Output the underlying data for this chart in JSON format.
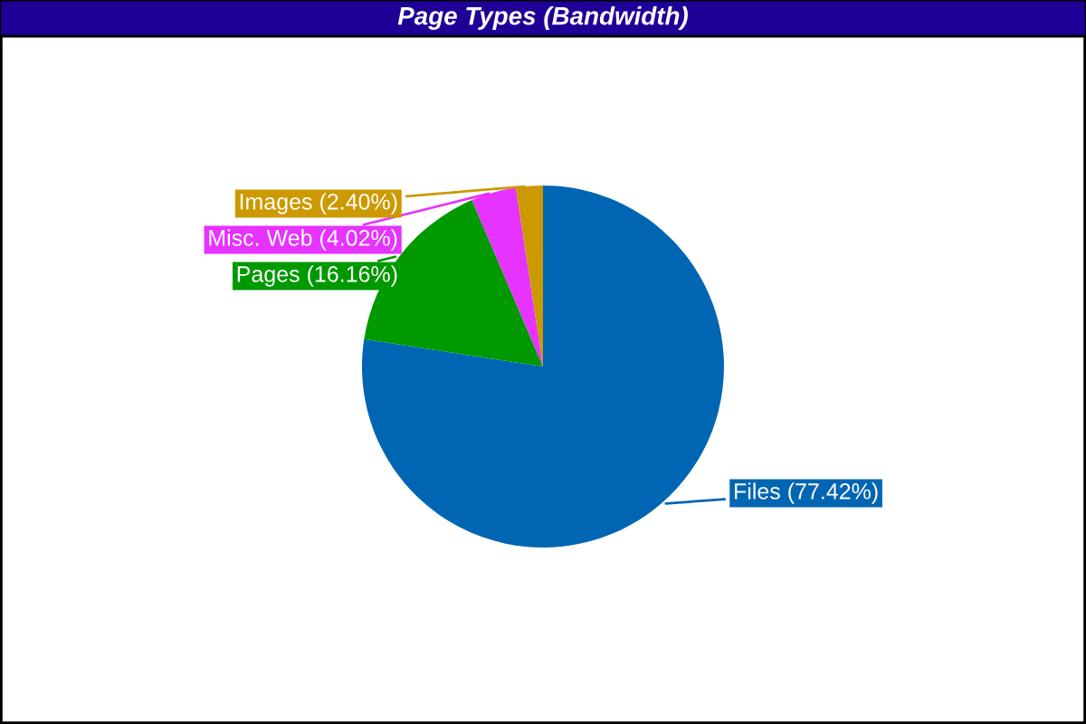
{
  "chart_data": {
    "type": "pie",
    "title": "Page Types (Bandwidth)",
    "categories": [
      "Files",
      "Pages",
      "Misc. Web",
      "Images"
    ],
    "values": [
      77.42,
      16.16,
      4.02,
      2.4
    ],
    "colors": [
      "#0066b3",
      "#009900",
      "#e633ff",
      "#cc9900"
    ],
    "value_labels": [
      "(77.42%)",
      "(16.16%)",
      "(4.02%)",
      "(2.40%)"
    ],
    "legend": false
  }
}
